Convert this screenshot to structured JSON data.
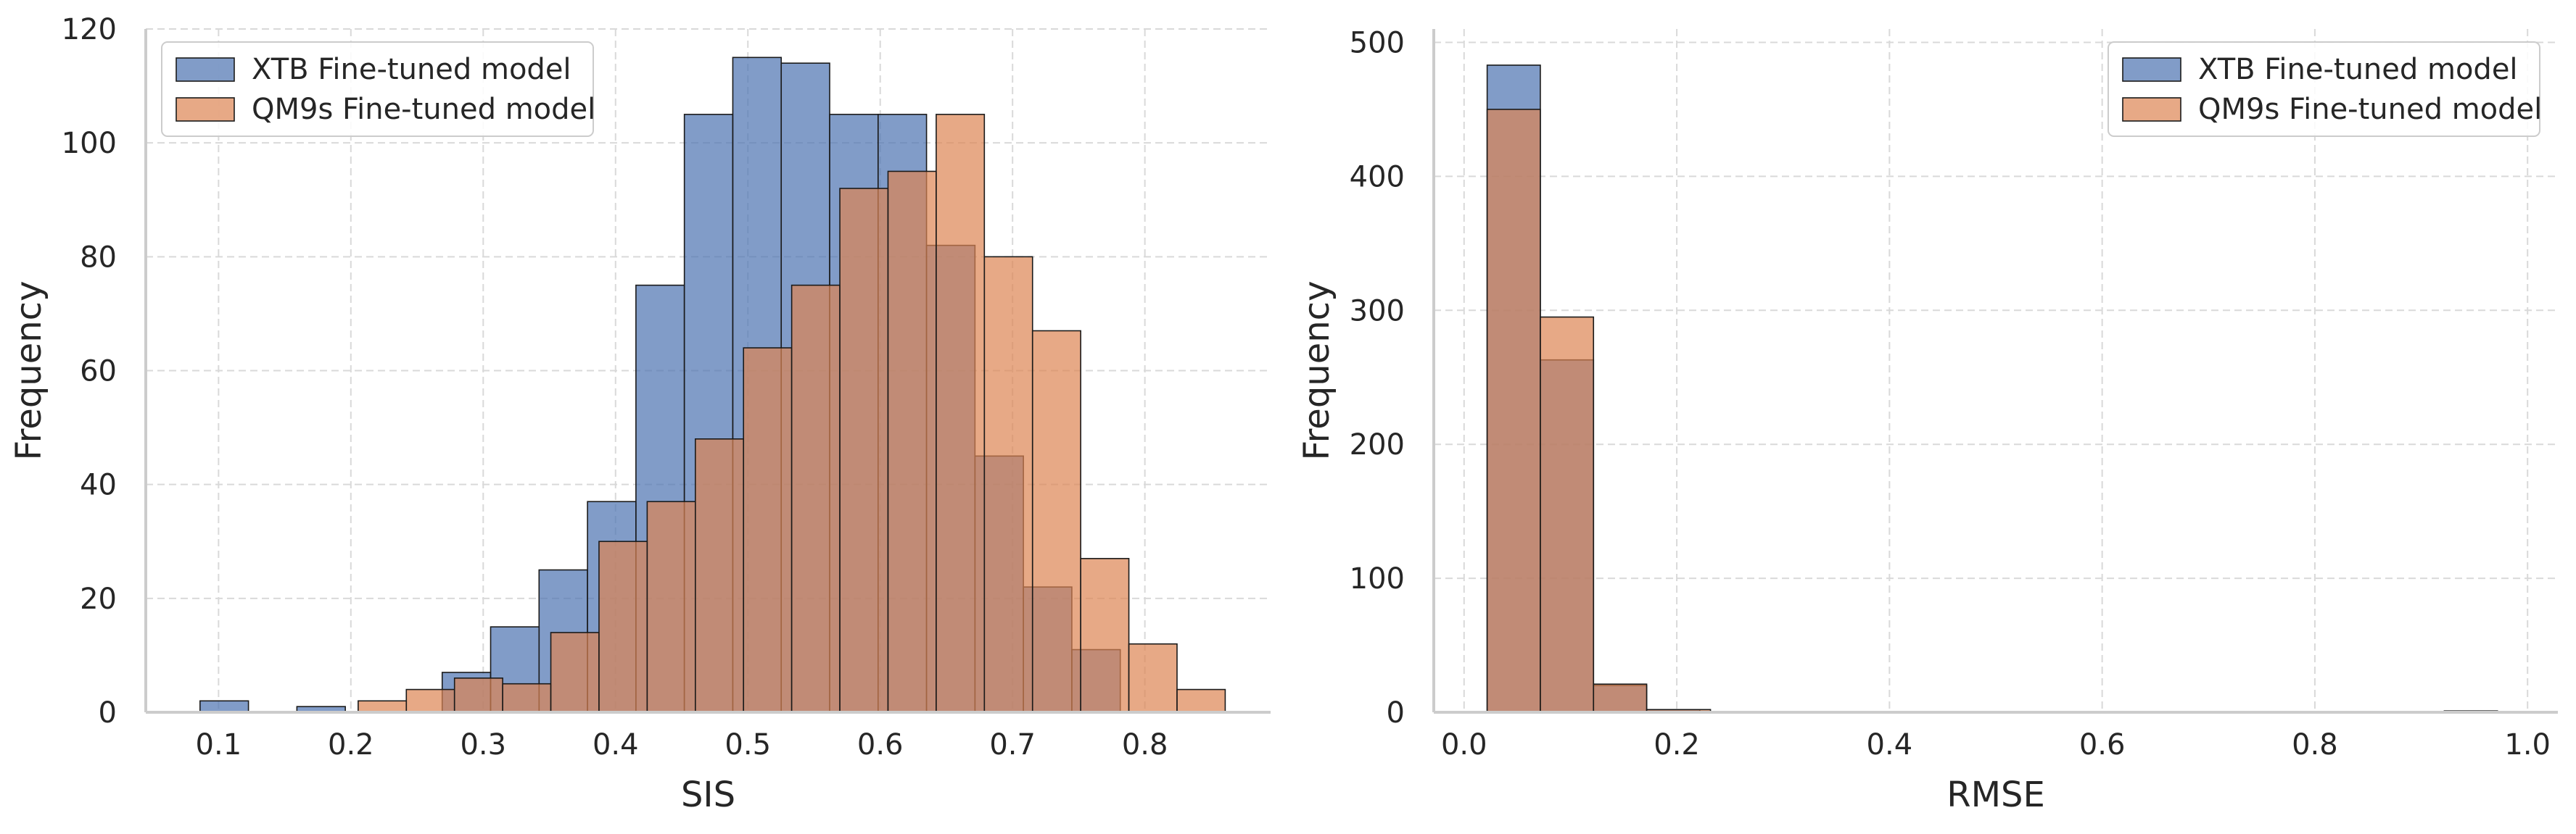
{
  "colors": {
    "xtb": "#4c72b0",
    "qm9s": "#dd8452"
  },
  "chart_data": [
    {
      "type": "histogram",
      "xlabel": "SIS",
      "ylabel": "Frequency",
      "xlim": [
        0.045,
        0.895
      ],
      "ylim": [
        0,
        120
      ],
      "xticks": [
        0.1,
        0.2,
        0.3,
        0.4,
        0.5,
        0.6,
        0.7,
        0.8
      ],
      "yticks": [
        0,
        20,
        40,
        60,
        80,
        100,
        120
      ],
      "xtick_labels": [
        "0.1",
        "0.2",
        "0.3",
        "0.4",
        "0.5",
        "0.6",
        "0.7",
        "0.8"
      ],
      "ytick_labels": [
        "0",
        "20",
        "40",
        "60",
        "80",
        "100",
        "120"
      ],
      "grid": true,
      "legend_position": "top-left",
      "series": [
        {
          "name": "XTB Fine-tuned model",
          "bin_edges": [
            0.086,
            0.1226,
            0.1592,
            0.1958,
            0.2324,
            0.269,
            0.3056,
            0.3422,
            0.3788,
            0.4154,
            0.452,
            0.4886,
            0.5252,
            0.5618,
            0.5984,
            0.635,
            0.6716,
            0.7082,
            0.7448,
            0.7814,
            0.818
          ],
          "counts": [
            2,
            0,
            1,
            0,
            0,
            7,
            15,
            25,
            37,
            75,
            105,
            115,
            114,
            105,
            105,
            82,
            45,
            22,
            11,
            0
          ]
        },
        {
          "name": "QM9s Fine-tuned model",
          "bin_edges": [
            0.2055,
            0.2419,
            0.2783,
            0.3147,
            0.3511,
            0.3875,
            0.4239,
            0.4603,
            0.4967,
            0.5331,
            0.5695,
            0.6059,
            0.6423,
            0.6787,
            0.7151,
            0.7515,
            0.7879,
            0.8243,
            0.8607
          ],
          "counts": [
            2,
            4,
            6,
            5,
            14,
            30,
            37,
            48,
            64,
            75,
            92,
            95,
            105,
            80,
            67,
            27,
            12,
            4
          ]
        }
      ]
    },
    {
      "type": "histogram",
      "xlabel": "RMSE",
      "ylabel": "Frequency",
      "xlim": [
        -0.0285,
        1.0285
      ],
      "ylim": [
        0,
        510
      ],
      "xticks": [
        0.0,
        0.2,
        0.4,
        0.6,
        0.8,
        1.0
      ],
      "yticks": [
        0,
        100,
        200,
        300,
        400,
        500
      ],
      "xtick_labels": [
        "0.0",
        "0.2",
        "0.4",
        "0.6",
        "0.8",
        "1.0"
      ],
      "ytick_labels": [
        "0",
        "100",
        "200",
        "300",
        "400",
        "500"
      ],
      "grid": true,
      "legend_position": "top-right",
      "series": [
        {
          "name": "XTB Fine-tuned model",
          "bin_edges": [
            0.0217,
            0.0717,
            0.1217,
            0.1717,
            0.2217,
            0.2717,
            0.3217,
            0.3717,
            0.4217,
            0.4717,
            0.5217,
            0.5717,
            0.6217,
            0.6717,
            0.7217,
            0.7717,
            0.8217,
            0.8717,
            0.9217,
            0.9717
          ],
          "counts": [
            483,
            263,
            20,
            2,
            0,
            0,
            0,
            0,
            0,
            0,
            0,
            0,
            0,
            0,
            0,
            0,
            0,
            0,
            1
          ]
        },
        {
          "name": "QM9s Fine-tuned model",
          "bin_edges": [
            0.0217,
            0.0717,
            0.1217,
            0.1717,
            0.2317
          ],
          "counts": [
            450,
            295,
            21,
            2
          ]
        }
      ]
    }
  ]
}
